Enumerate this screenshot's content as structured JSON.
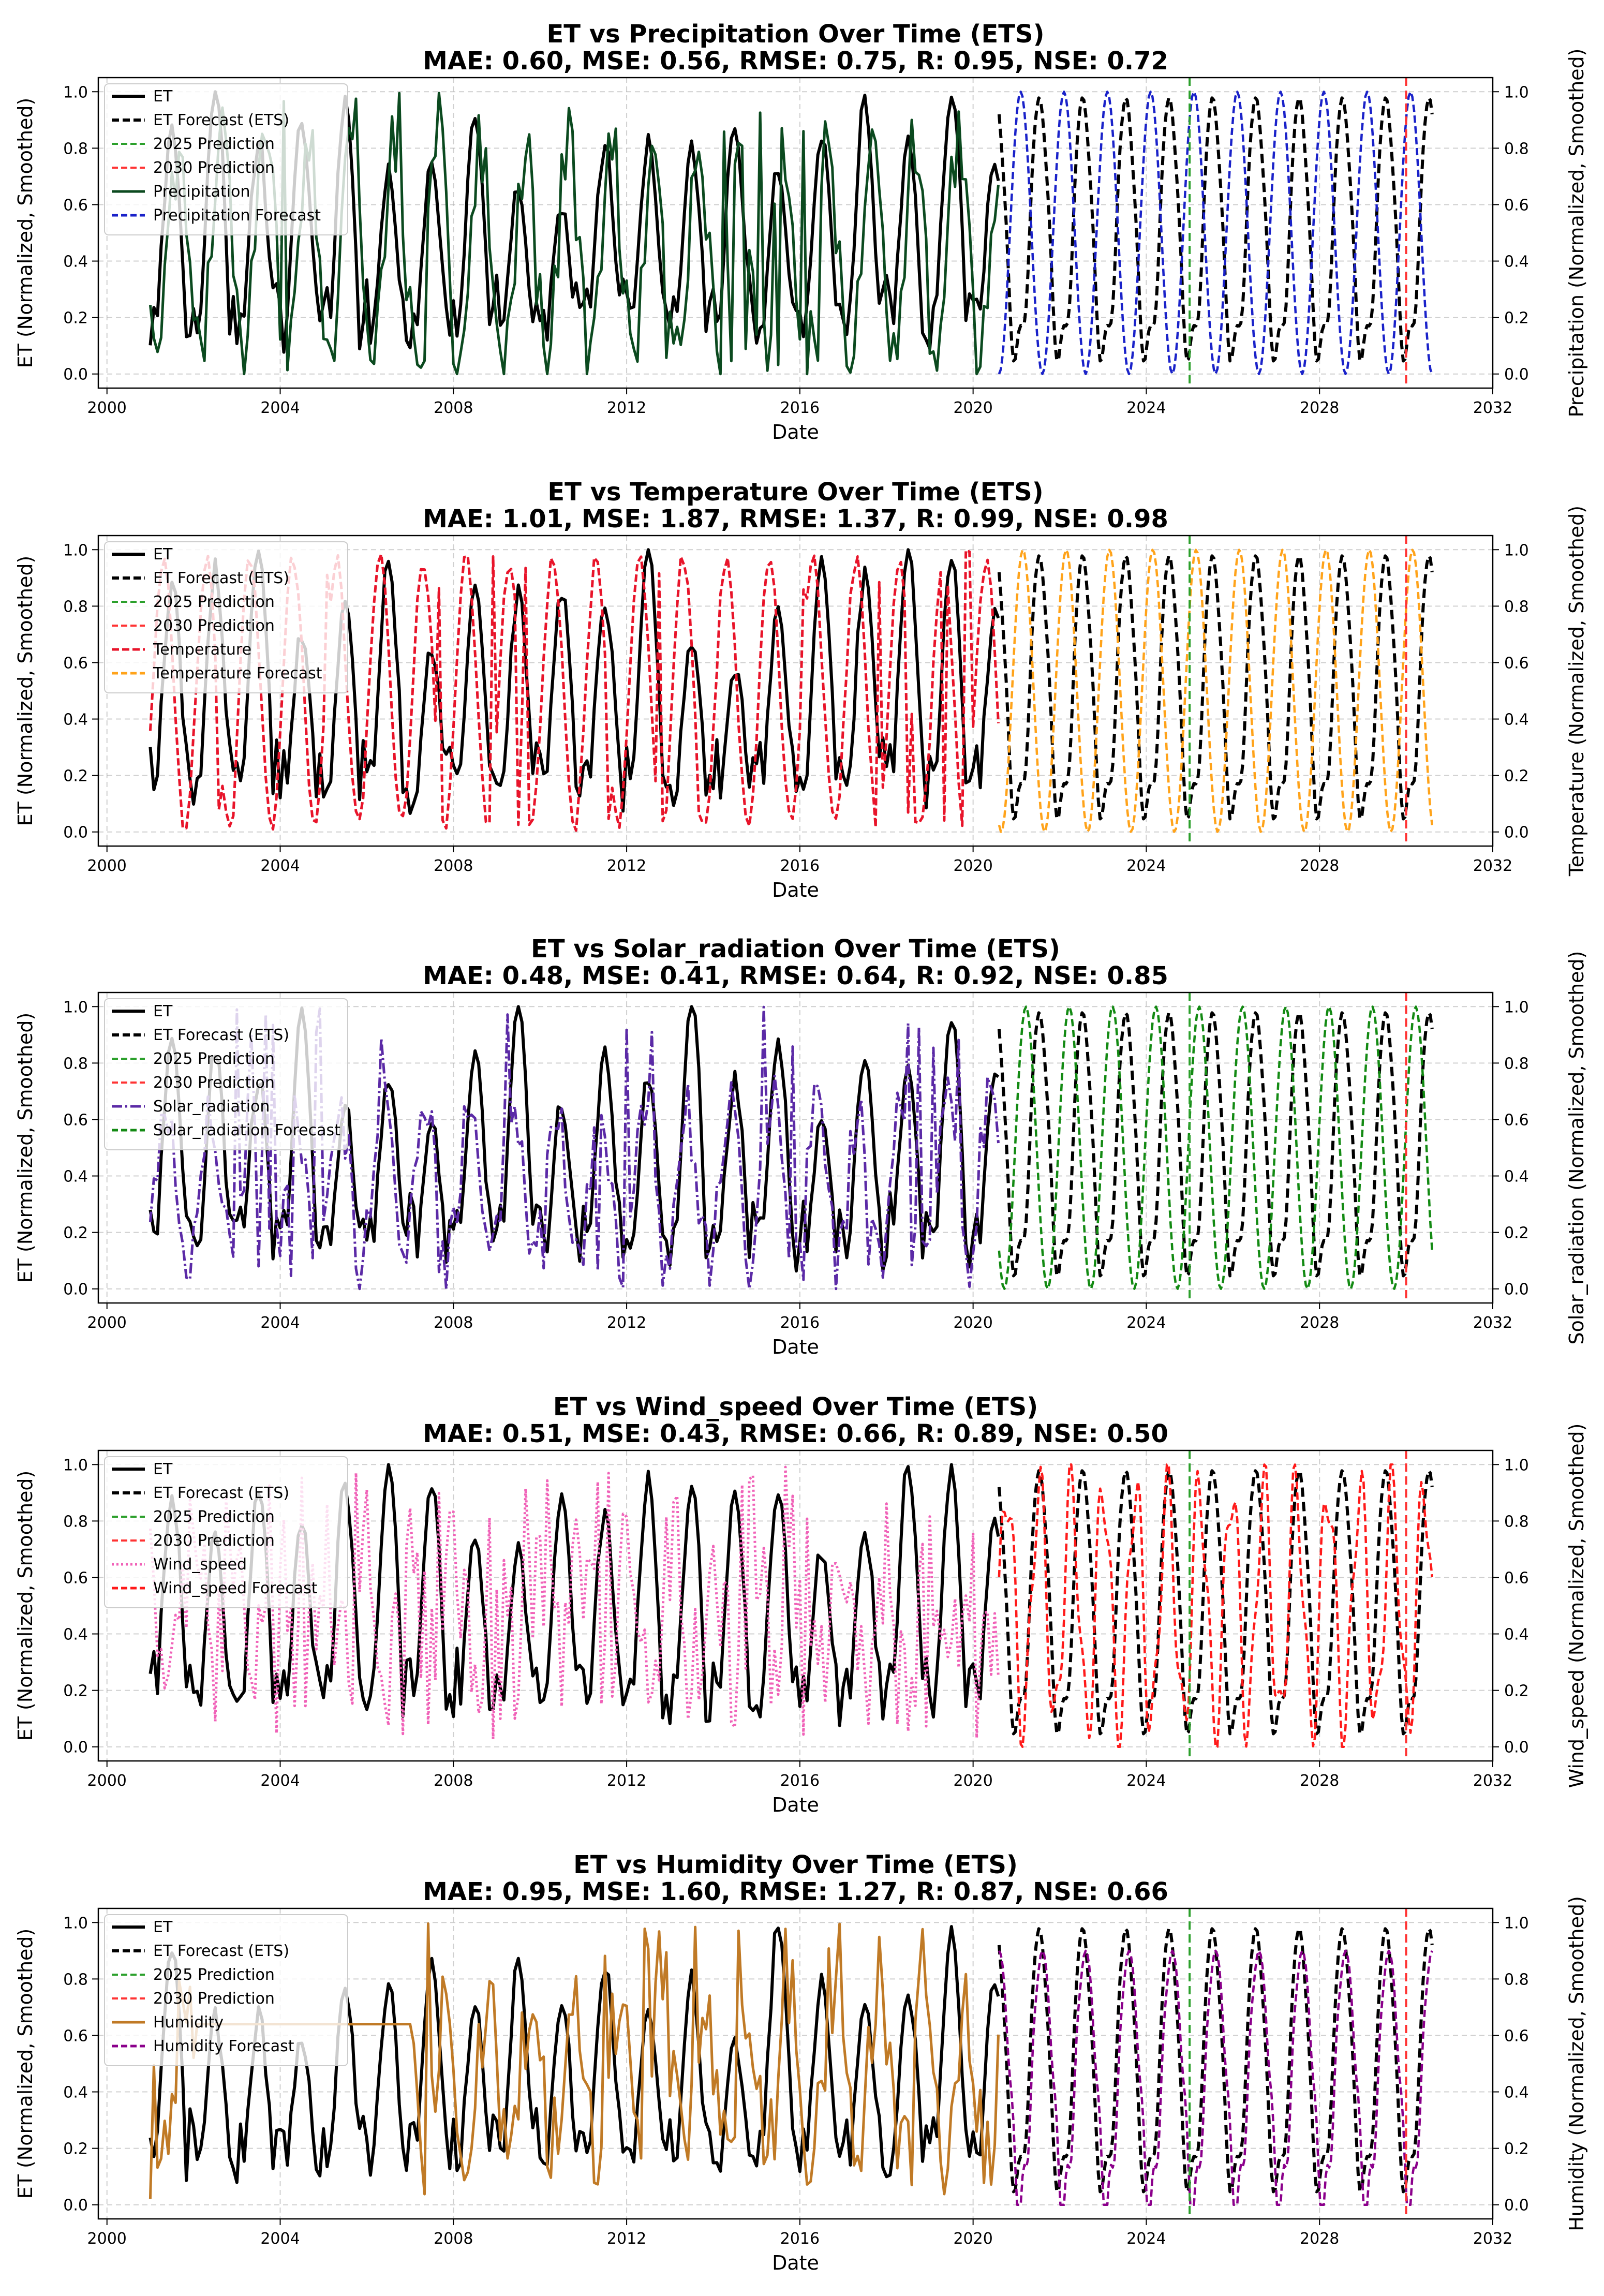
{
  "figure": {
    "x_ticks": [
      "2000",
      "2004",
      "2008",
      "2012",
      "2016",
      "2020",
      "2024",
      "2028",
      "2032"
    ],
    "y_ticks": [
      "0.0",
      "0.2",
      "0.4",
      "0.6",
      "0.8",
      "1.0"
    ],
    "xlabel": "Date",
    "ylabel_left": "ET (Normalized, Smoothed)"
  },
  "chart_data": [
    {
      "type": "line",
      "title": "ET vs Precipitation Over Time (ETS)",
      "metrics": "MAE: 0.60, MSE: 0.56, RMSE: 0.75, R: 0.95, NSE: 0.72",
      "xlabel": "Date",
      "ylabel": "ET (Normalized, Smoothed)",
      "ylabel_right": "Precipitation (Normalized, Smoothed)",
      "xlim": [
        1999.8,
        2032.0
      ],
      "ylim": [
        -0.05,
        1.05
      ],
      "grid": true,
      "legend_position": "top-left",
      "legend": [
        "ET",
        "ET Forecast (ETS)",
        "2025 Prediction",
        "2030 Prediction",
        "Precipitation",
        "Precipitation Forecast"
      ],
      "vlines": [
        {
          "name": "2025 Prediction",
          "x": 2025.0
        },
        {
          "name": "2030 Prediction",
          "x": 2030.0
        }
      ],
      "series": [
        {
          "name": "ET",
          "kind": "et_hist",
          "range": [
            2001.0,
            2020.6
          ],
          "amp_range": [
            0.55,
            1.0
          ]
        },
        {
          "name": "ET Forecast (ETS)",
          "kind": "et_fc",
          "range": [
            2020.6,
            2030.6
          ]
        },
        {
          "name": "Precipitation",
          "kind": "hist",
          "range": [
            2001.0,
            2020.6
          ],
          "base": 0.05,
          "amp": 0.75,
          "phase": 0.6,
          "noise": 0.15
        },
        {
          "name": "Precipitation Forecast",
          "kind": "fc",
          "range": [
            2020.6,
            2030.6
          ],
          "phase": 0.0
        }
      ]
    },
    {
      "type": "line",
      "title": "ET vs Temperature Over Time (ETS)",
      "metrics": "MAE: 1.01, MSE: 1.87, RMSE: 1.37, R: 0.99, NSE: 0.98",
      "xlabel": "Date",
      "ylabel": "ET (Normalized, Smoothed)",
      "ylabel_right": "Temperature (Normalized, Smoothed)",
      "xlim": [
        1999.8,
        2032.0
      ],
      "ylim": [
        -0.05,
        1.05
      ],
      "grid": true,
      "legend_position": "top-left",
      "legend": [
        "ET",
        "ET Forecast (ETS)",
        "2025 Prediction",
        "2030 Prediction",
        "Temperature",
        "Temperature Forecast"
      ],
      "vlines": [
        {
          "name": "2025 Prediction",
          "x": 2025.0
        },
        {
          "name": "2030 Prediction",
          "x": 2030.0
        }
      ],
      "series": [
        {
          "name": "ET",
          "kind": "et_hist",
          "range": [
            2001.0,
            2020.6
          ],
          "amp_range": [
            0.55,
            1.0
          ]
        },
        {
          "name": "ET Forecast (ETS)",
          "kind": "et_fc",
          "range": [
            2020.6,
            2030.6
          ]
        },
        {
          "name": "Temperature",
          "kind": "hist",
          "range": [
            2001.0,
            2020.6
          ],
          "base": 0.02,
          "amp": 0.95,
          "phase": -0.05,
          "noise": 0.03
        },
        {
          "name": "Temperature Forecast",
          "kind": "fc",
          "range": [
            2020.6,
            2030.6
          ],
          "phase": -0.05
        }
      ]
    },
    {
      "type": "line",
      "title": "ET vs Solar_radiation Over Time (ETS)",
      "metrics": "MAE: 0.48, MSE: 0.41, RMSE: 0.64, R: 0.92, NSE: 0.85",
      "xlabel": "Date",
      "ylabel": "ET (Normalized, Smoothed)",
      "ylabel_right": "Solar_radiation (Normalized, Smoothed)",
      "xlim": [
        1999.8,
        2032.0
      ],
      "ylim": [
        -0.05,
        1.05
      ],
      "grid": true,
      "legend_position": "top-left",
      "legend": [
        "ET",
        "ET Forecast (ETS)",
        "2025 Prediction",
        "2030 Prediction",
        "Solar_radiation",
        "Solar_radiation Forecast"
      ],
      "vlines": [
        {
          "name": "2025 Prediction",
          "x": 2025.0
        },
        {
          "name": "2030 Prediction",
          "x": 2030.0
        }
      ],
      "series": [
        {
          "name": "ET",
          "kind": "et_hist",
          "range": [
            2001.0,
            2020.6
          ],
          "amp_range": [
            0.55,
            1.0
          ]
        },
        {
          "name": "ET Forecast (ETS)",
          "kind": "et_fc",
          "range": [
            2020.6,
            2030.6
          ]
        },
        {
          "name": "Solar_radiation",
          "kind": "hist",
          "range": [
            2001.0,
            2020.6
          ],
          "base": 0.1,
          "amp": 0.55,
          "phase": -0.12,
          "noise": 0.12
        },
        {
          "name": "Solar_radiation Forecast",
          "kind": "fc",
          "range": [
            2020.6,
            2030.6
          ],
          "phase": -0.12
        }
      ]
    },
    {
      "type": "line",
      "title": "ET vs Wind_speed Over Time (ETS)",
      "metrics": "MAE: 0.51, MSE: 0.43, RMSE: 0.66, R: 0.89, NSE: 0.50",
      "xlabel": "Date",
      "ylabel": "ET (Normalized, Smoothed)",
      "ylabel_right": "Wind_speed (Normalized, Smoothed)",
      "xlim": [
        1999.8,
        2032.0
      ],
      "ylim": [
        -0.05,
        1.05
      ],
      "grid": true,
      "legend_position": "top-left",
      "legend": [
        "ET",
        "ET Forecast (ETS)",
        "2025 Prediction",
        "2030 Prediction",
        "Wind_speed",
        "Wind_speed Forecast"
      ],
      "vlines": [
        {
          "name": "2025 Prediction",
          "x": 2025.0
        },
        {
          "name": "2030 Prediction",
          "x": 2030.0
        }
      ],
      "series": [
        {
          "name": "ET",
          "kind": "et_hist",
          "range": [
            2001.0,
            2020.6
          ],
          "amp_range": [
            0.55,
            1.0
          ]
        },
        {
          "name": "ET Forecast (ETS)",
          "kind": "et_fc",
          "range": [
            2020.6,
            2030.6
          ]
        },
        {
          "name": "Wind_speed",
          "kind": "hist",
          "range": [
            2001.0,
            2020.6
          ],
          "base": 0.3,
          "amp": 0.35,
          "phase": 0.25,
          "noise": 0.25
        },
        {
          "name": "Wind_speed Forecast",
          "kind": "fc_irregular",
          "range": [
            2020.6,
            2030.6
          ],
          "phase": 0.25
        }
      ]
    },
    {
      "type": "line",
      "title": "ET vs Humidity Over Time (ETS)",
      "metrics": "MAE: 0.95, MSE: 1.60, RMSE: 1.27, R: 0.87, NSE: 0.66",
      "xlabel": "Date",
      "ylabel": "ET (Normalized, Smoothed)",
      "ylabel_right": "Humidity (Normalized, Smoothed)",
      "xlim": [
        1999.8,
        2032.0
      ],
      "ylim": [
        -0.05,
        1.05
      ],
      "grid": true,
      "legend_position": "top-left",
      "legend": [
        "ET",
        "ET Forecast (ETS)",
        "2025 Prediction",
        "2030 Prediction",
        "Humidity",
        "Humidity Forecast"
      ],
      "vlines": [
        {
          "name": "2025 Prediction",
          "x": 2025.0
        },
        {
          "name": "2030 Prediction",
          "x": 2030.0
        }
      ],
      "series": [
        {
          "name": "ET",
          "kind": "et_hist",
          "range": [
            2001.0,
            2020.6
          ],
          "amp_range": [
            0.55,
            1.0
          ]
        },
        {
          "name": "ET Forecast (ETS)",
          "kind": "et_fc",
          "range": [
            2020.6,
            2030.6
          ]
        },
        {
          "name": "Humidity",
          "kind": "humidity",
          "range": [
            2001.0,
            2020.6
          ],
          "flat_value": 0.64,
          "flat_range": [
            2002.0,
            2007.0
          ],
          "base": 0.2,
          "amp": 0.5,
          "phase": 0.45,
          "noise": 0.18
        },
        {
          "name": "Humidity Forecast",
          "kind": "fc_humid",
          "range": [
            2020.6,
            2030.6
          ],
          "phase": 0.0
        }
      ]
    }
  ],
  "colors": {
    "et": "#000000",
    "et_forecast": "#000000",
    "vline_2025": "#2ca02c",
    "vline_2030": "#ff3333",
    "grid": "#b0b0b0",
    "series": [
      "#0b4a1f",
      "#e8142a",
      "#5b2aa6",
      "#f062b8",
      "#c07a26"
    ],
    "forecast": [
      "#1a22c9",
      "#ffa31a",
      "#138a13",
      "#ff1a1a",
      "#8b008b"
    ]
  }
}
